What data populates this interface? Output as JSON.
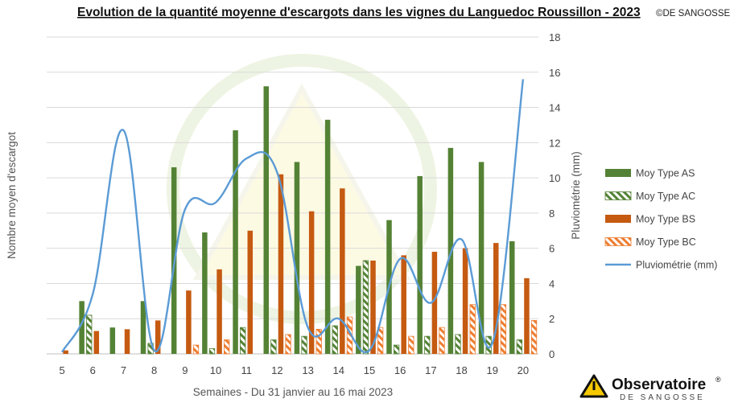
{
  "title": "Evolution de la quantité moyenne d'escargots dans les vignes du Languedoc Roussillon - 2023",
  "copyright": "©DE SANGOSSE",
  "brand": {
    "name": "Observatoire",
    "reg": "®",
    "sub": "DE SANGOSSE",
    "colors": {
      "triangle": "#f5c800",
      "outline": "#111111"
    }
  },
  "colors": {
    "AS": "#548235",
    "AC": "#548235",
    "BS": "#c55a11",
    "BC": "#ed7d31",
    "rain": "#5b9bd5",
    "grid": "#d9d9d9",
    "watermark": "#e8f0d2"
  },
  "chart_data": {
    "type": "bar",
    "title": "Evolution de la quantité moyenne d'escargots dans les vignes du Languedoc Roussillon - 2023",
    "xlabel": "Semaines - Du 31 janvier au 16 mai 2023",
    "ylabel": "Nombre moyen d'escargot",
    "y2label": "Pluviométrie (mm)",
    "categories": [
      "5",
      "6",
      "7",
      "8",
      "9",
      "10",
      "11",
      "12",
      "13",
      "14",
      "15",
      "16",
      "17",
      "18",
      "19",
      "20"
    ],
    "ylim": [
      0,
      18
    ],
    "y2lim": [
      0,
      18
    ],
    "y2_ticks": [
      "0",
      "2",
      "4",
      "6",
      "8",
      "10",
      "12",
      "14",
      "16",
      "18"
    ],
    "grid": true,
    "legend_position": "right",
    "series": [
      {
        "name": "Moy Type AS",
        "type": "bar",
        "style": "solid",
        "values": [
          0,
          3.0,
          1.5,
          3.0,
          10.6,
          6.9,
          12.7,
          15.2,
          10.9,
          13.3,
          5.0,
          7.6,
          10.1,
          11.7,
          10.9,
          6.4
        ]
      },
      {
        "name": "Moy Type AC",
        "type": "bar",
        "style": "hatch",
        "values": [
          0,
          2.2,
          0,
          0.6,
          0,
          0.3,
          1.5,
          0.8,
          1.0,
          1.6,
          5.3,
          0.5,
          1.0,
          1.1,
          1.0,
          0.8
        ]
      },
      {
        "name": "Moy Type BS",
        "type": "bar",
        "style": "solid",
        "values": [
          0.2,
          1.3,
          1.4,
          1.9,
          3.6,
          4.8,
          7.0,
          10.2,
          8.1,
          9.4,
          5.3,
          5.6,
          5.8,
          6.0,
          6.3,
          4.3
        ]
      },
      {
        "name": "Moy Type BC",
        "type": "bar",
        "style": "hatch",
        "values": [
          0,
          0,
          0,
          0,
          0.5,
          0.8,
          0,
          1.1,
          1.4,
          2.1,
          1.5,
          1.0,
          1.5,
          2.8,
          2.8,
          1.9
        ]
      },
      {
        "name": "Pluviométrie (mm)",
        "type": "line",
        "axis": "secondary",
        "values": [
          0.1,
          3.4,
          12.7,
          0.2,
          8.2,
          8.6,
          11.1,
          10.3,
          1.5,
          2.0,
          0.2,
          5.4,
          2.9,
          6.5,
          0.6,
          15.6
        ]
      }
    ]
  }
}
